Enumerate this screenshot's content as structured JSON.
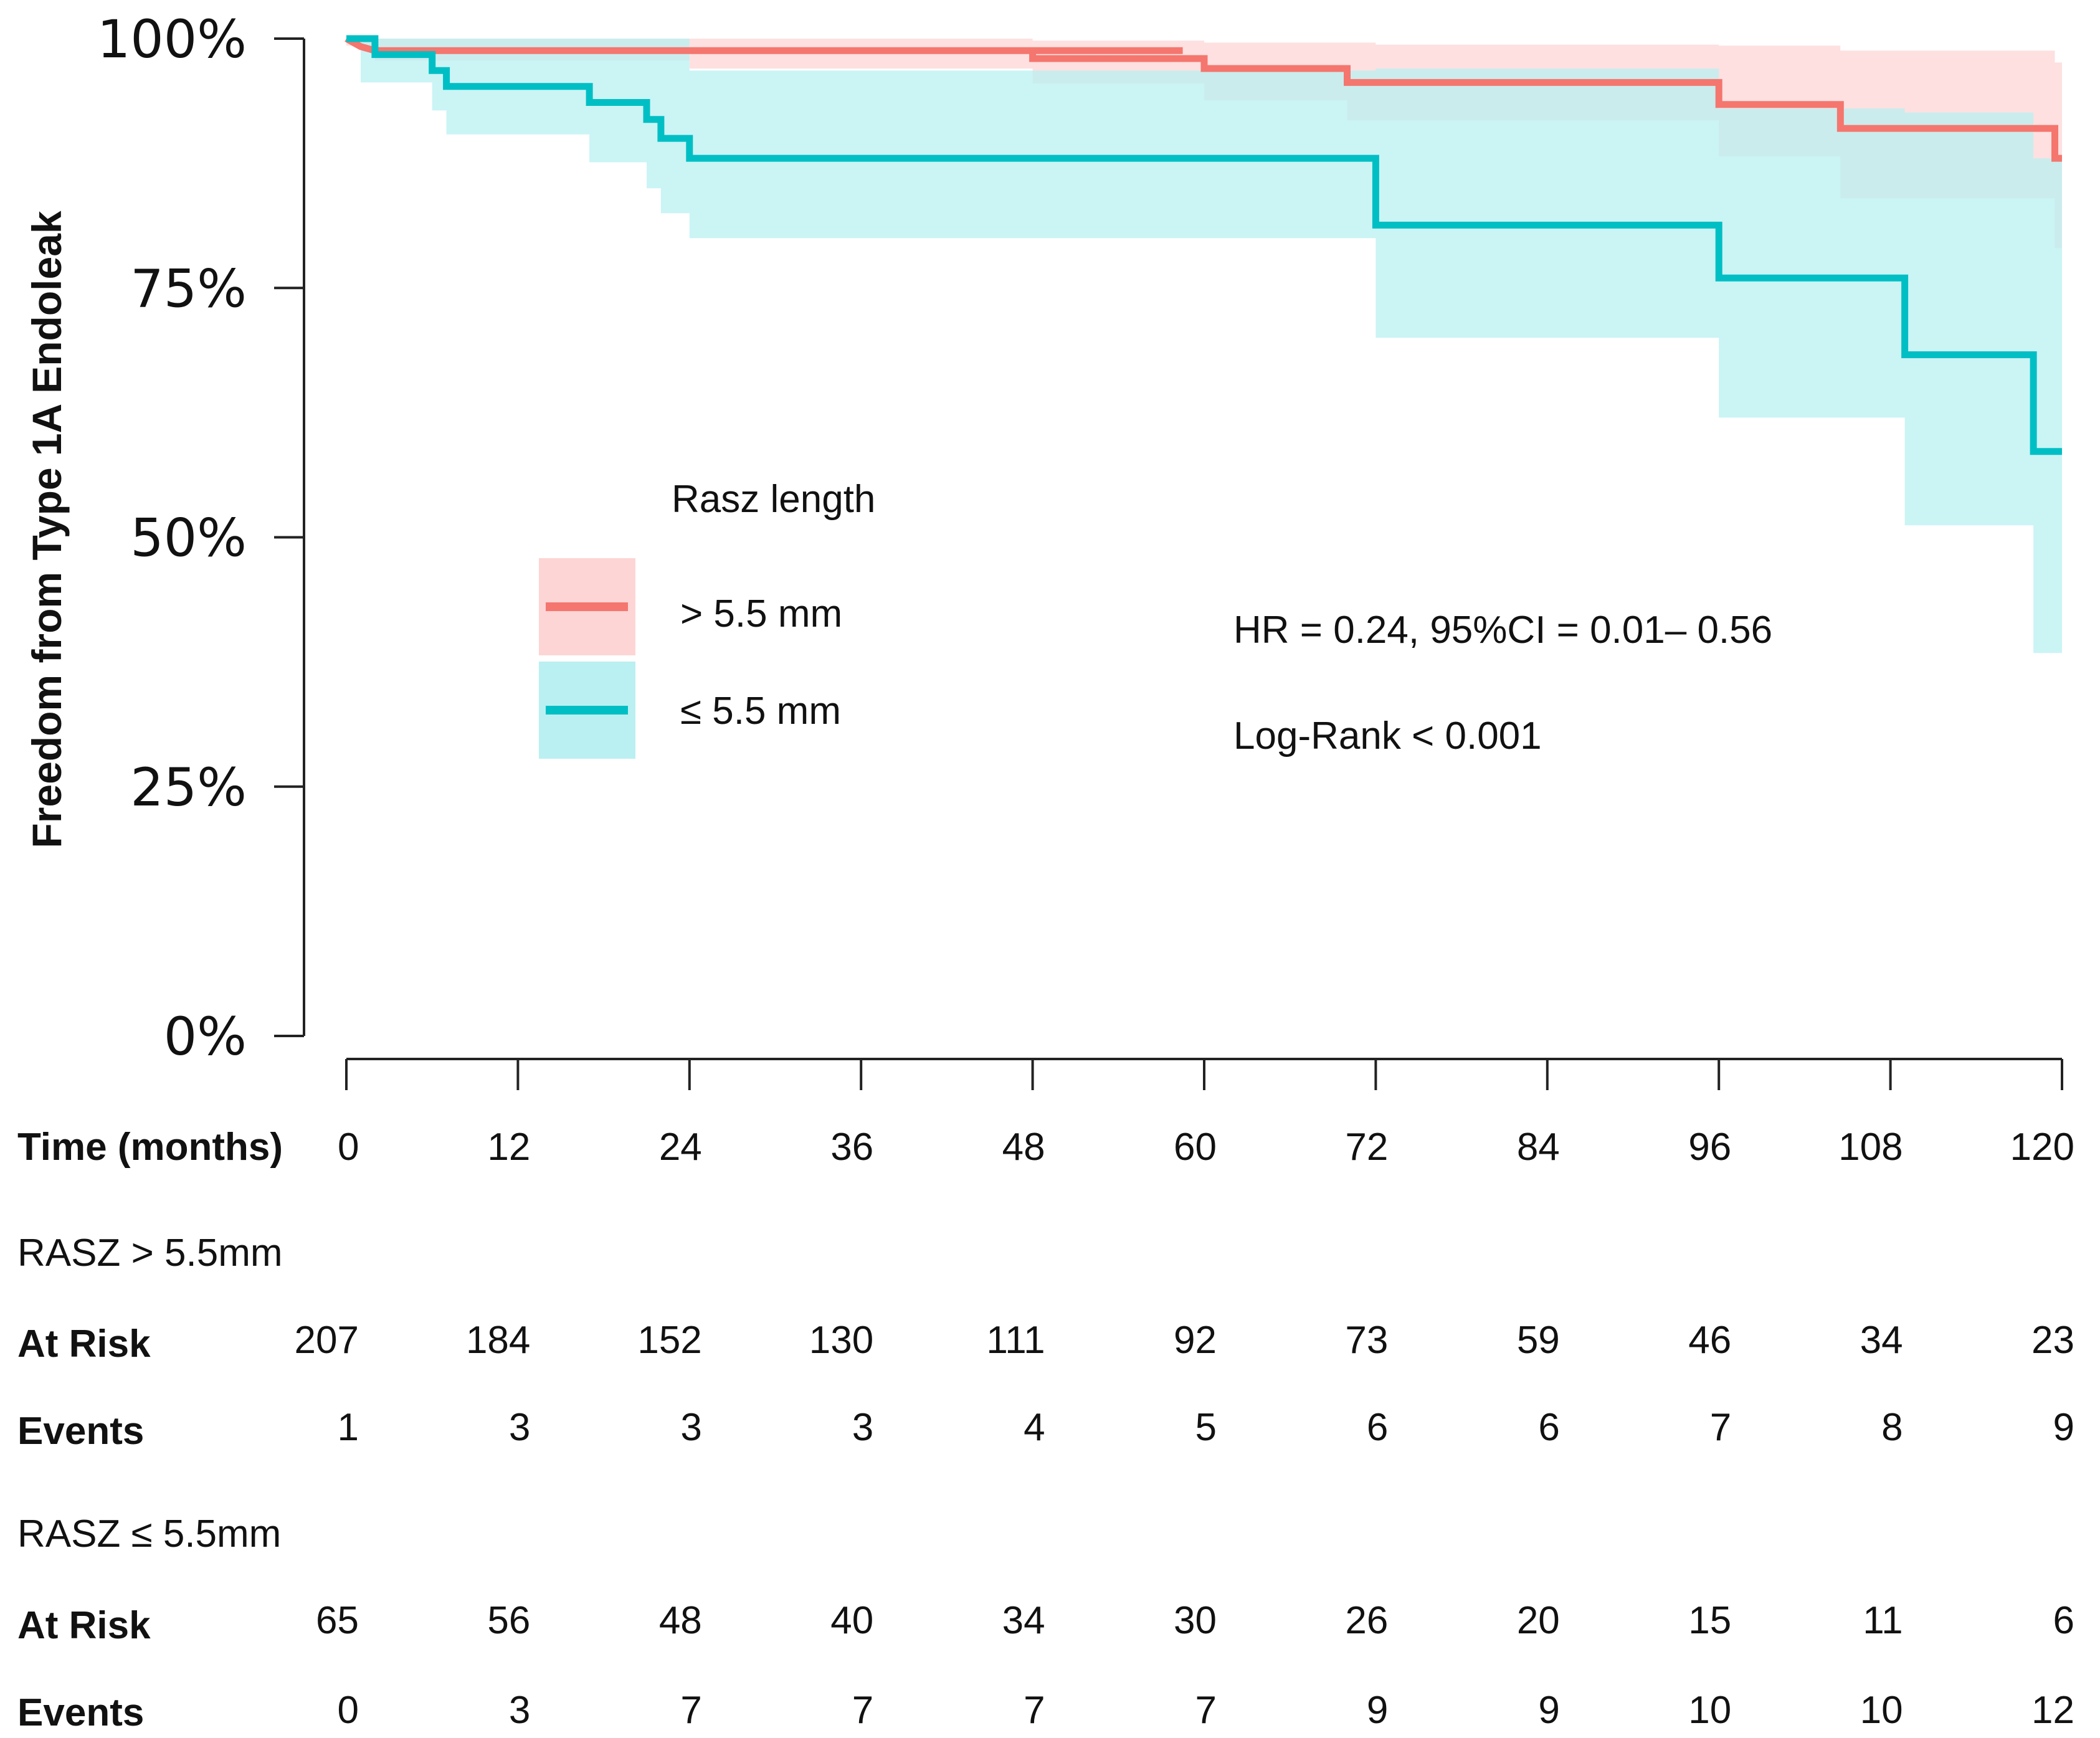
{
  "chart_data": {
    "type": "line",
    "subtype": "kaplan-meier",
    "ylabel": "Freedom from Type 1A Endoleak",
    "xlabel": "Time (months)",
    "ylim": [
      0,
      100
    ],
    "xlim": [
      0,
      120
    ],
    "yticks": [
      {
        "value": 0,
        "label": "0%"
      },
      {
        "value": 25,
        "label": "25%"
      },
      {
        "value": 50,
        "label": "50%"
      },
      {
        "value": 75,
        "label": "75%"
      },
      {
        "value": 100,
        "label": "100%"
      }
    ],
    "xticks": [
      {
        "value": 0,
        "label": "0"
      },
      {
        "value": 12,
        "label": "12"
      },
      {
        "value": 24,
        "label": "24"
      },
      {
        "value": 36,
        "label": "36"
      },
      {
        "value": 48,
        "label": "48"
      },
      {
        "value": 60,
        "label": "60"
      },
      {
        "value": 72,
        "label": "72"
      },
      {
        "value": 84,
        "label": "84"
      },
      {
        "value": 96,
        "label": "96"
      },
      {
        "value": 108,
        "label": "108"
      },
      {
        "value": 120,
        "label": "120"
      }
    ],
    "legend": {
      "title": "Rasz length",
      "position": "center-left",
      "entries": [
        {
          "label": "> 5.5 mm",
          "series": "gt"
        },
        {
          "label": "≤  5.5 mm",
          "series": "le"
        }
      ]
    },
    "annotations": [
      "HR = 0.24, 95%CI = 0.01– 0.56",
      "Log-Rank < 0.001"
    ],
    "series": [
      {
        "id": "gt",
        "name": "> 5.5 mm",
        "color": "#F4766E",
        "band_color": "#FDD5D5",
        "steps": [
          [
            0,
            100
          ],
          [
            0.5,
            99.6
          ],
          [
            1.0,
            99.2
          ],
          [
            2.0,
            98.8
          ],
          [
            58.5,
            98.8
          ],
          [
            58.5,
            98.8
          ],
          [
            48,
            98.8
          ],
          [
            48,
            98.0
          ],
          [
            60,
            98.0
          ],
          [
            60,
            97.0
          ],
          [
            70,
            97.0
          ],
          [
            70,
            95.6
          ],
          [
            96,
            95.6
          ],
          [
            96,
            93.4
          ],
          [
            104.5,
            93.4
          ],
          [
            104.5,
            91.0
          ],
          [
            119.5,
            91.0
          ],
          [
            119.5,
            88.0
          ],
          [
            120,
            88.0
          ]
        ],
        "ci_lower": [
          [
            0,
            99.3
          ],
          [
            2,
            97.8
          ],
          [
            24,
            97.0
          ],
          [
            48,
            95.5
          ],
          [
            60,
            93.8
          ],
          [
            70,
            91.8
          ],
          [
            96,
            88.2
          ],
          [
            104.5,
            84.0
          ],
          [
            119.5,
            79.0
          ],
          [
            120,
            79.0
          ]
        ],
        "ci_upper": [
          [
            0,
            100
          ],
          [
            48,
            99.8
          ],
          [
            60,
            99.6
          ],
          [
            72,
            99.4
          ],
          [
            96,
            99.3
          ],
          [
            104.5,
            98.8
          ],
          [
            119.5,
            97.6
          ],
          [
            120,
            97.6
          ]
        ]
      },
      {
        "id": "le",
        "name": "≤  5.5 mm",
        "color": "#00BFC4",
        "band_color": "#BAF0F2",
        "steps": [
          [
            0,
            100
          ],
          [
            2,
            100
          ],
          [
            2,
            98.4
          ],
          [
            6,
            98.4
          ],
          [
            6,
            96.8
          ],
          [
            7,
            96.8
          ],
          [
            7,
            95.2
          ],
          [
            17,
            95.2
          ],
          [
            17,
            93.6
          ],
          [
            21,
            93.6
          ],
          [
            21,
            91.9
          ],
          [
            22,
            91.9
          ],
          [
            22,
            90.0
          ],
          [
            24,
            90.0
          ],
          [
            24,
            88.0
          ],
          [
            72,
            88.0
          ],
          [
            72,
            81.3
          ],
          [
            96,
            81.3
          ],
          [
            96,
            76.0
          ],
          [
            109,
            76.0
          ],
          [
            109,
            68.3
          ],
          [
            118,
            68.3
          ],
          [
            118,
            58.6
          ],
          [
            120,
            58.6
          ]
        ],
        "ci_lower": [
          [
            0,
            100
          ],
          [
            1,
            95.6
          ],
          [
            6,
            92.8
          ],
          [
            7,
            90.4
          ],
          [
            17,
            87.6
          ],
          [
            21,
            85.0
          ],
          [
            22,
            82.5
          ],
          [
            24,
            80.0
          ],
          [
            72,
            70.0
          ],
          [
            96,
            62.0
          ],
          [
            109,
            51.2
          ],
          [
            118,
            38.4
          ],
          [
            120,
            38.4
          ]
        ],
        "ci_upper": [
          [
            0,
            100
          ],
          [
            2,
            100
          ],
          [
            24,
            96.8
          ],
          [
            72,
            97.0
          ],
          [
            96,
            93.0
          ],
          [
            109,
            92.6
          ],
          [
            118,
            88.0
          ],
          [
            120,
            88.0
          ]
        ]
      }
    ]
  },
  "risk_table": {
    "time_label": "Time (months)",
    "groups": [
      {
        "title": "RASZ > 5.5mm",
        "at_risk_label": "At Risk",
        "events_label": "Events",
        "at_risk": [
          "207",
          "184",
          "152",
          "130",
          "111",
          "92",
          "73",
          "59",
          "46",
          "34",
          "23"
        ],
        "events": [
          "1",
          "3",
          "3",
          "3",
          "4",
          "5",
          "6",
          "6",
          "7",
          "8",
          "9"
        ]
      },
      {
        "title": "RASZ ≤ 5.5mm",
        "at_risk_label": "At Risk",
        "events_label": "Events",
        "at_risk": [
          "65",
          "56",
          "48",
          "40",
          "34",
          "30",
          "26",
          "20",
          "15",
          "11",
          "6"
        ],
        "events": [
          "0",
          "3",
          "7",
          "7",
          "7",
          "7",
          "9",
          "9",
          "10",
          "10",
          "12"
        ]
      }
    ]
  }
}
